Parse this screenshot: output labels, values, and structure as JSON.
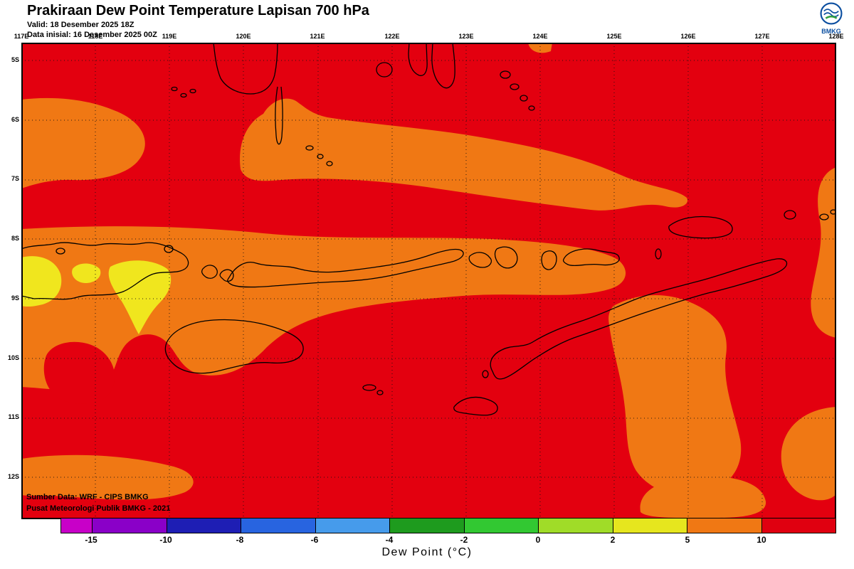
{
  "header": {
    "title": "Prakiraan Dew Point Temperature Lapisan 700 hPa",
    "valid": "Valid: 18 Desember 2025 18Z",
    "init": "Data inisial: 16 Desember 2025 00Z"
  },
  "logo": {
    "label": "BMKG"
  },
  "map": {
    "lon_labels": [
      "117E",
      "118E",
      "119E",
      "120E",
      "121E",
      "122E",
      "123E",
      "124E",
      "125E",
      "126E",
      "127E",
      "128E"
    ],
    "lat_labels": [
      "5S",
      "6S",
      "7S",
      "8S",
      "9S",
      "10S",
      "11S",
      "12S"
    ],
    "credit_line1": "Sumber Data: WRF - CIPS BMKG",
    "credit_line2": "Pusat Meteorologi Publik BMKG - 2021"
  },
  "colorbar": {
    "title": "Dew Point (°C)",
    "ticks": [
      "-15",
      "-10",
      "-8",
      "-6",
      "-4",
      "-2",
      "0",
      "2",
      "5",
      "10"
    ],
    "colors": [
      "#C800C8",
      "#8A00C8",
      "#1E1EB4",
      "#2864E0",
      "#469BEB",
      "#1E9B1E",
      "#32C832",
      "#A0DC28",
      "#E6E61E",
      "#F07814",
      "#E00010"
    ]
  },
  "colors": {
    "red": "#E3000F",
    "orange": "#F07814",
    "yellow": "#F0E61E",
    "coastline": "#000000",
    "logo_blue": "#0A4EA0",
    "logo_green": "#2E9E3E"
  },
  "chart_data": {
    "type": "heatmap",
    "title": "Prakiraan Dew Point Temperature Lapisan 700 hPa",
    "x_axis": {
      "label_type": "longitude",
      "ticks": [
        "117E",
        "118E",
        "119E",
        "120E",
        "121E",
        "122E",
        "123E",
        "124E",
        "125E",
        "126E",
        "127E",
        "128E"
      ]
    },
    "y_axis": {
      "label_type": "latitude",
      "ticks": [
        "5S",
        "6S",
        "7S",
        "8S",
        "9S",
        "10S",
        "11S",
        "12S"
      ]
    },
    "legend_label": "Dew Point (°C)",
    "legend_bin_edges": [
      -15,
      -10,
      -8,
      -6,
      -4,
      -2,
      0,
      2,
      5,
      10
    ],
    "field_summary": [
      {
        "value_range": ">10",
        "color": "#E3000F",
        "coverage": "dominant over most of domain"
      },
      {
        "value_range": "5 to 10",
        "color": "#F07814",
        "coverage": "band near 6-7S from 120E-126E, band along 8-9S islands, left edge, Timor/south-central blob, bottom-left and bottom-right patches"
      },
      {
        "value_range": "2 to 5",
        "color": "#F0E61E",
        "coverage": "small patches near 117-119E around 8.5-9.5S"
      }
    ]
  }
}
